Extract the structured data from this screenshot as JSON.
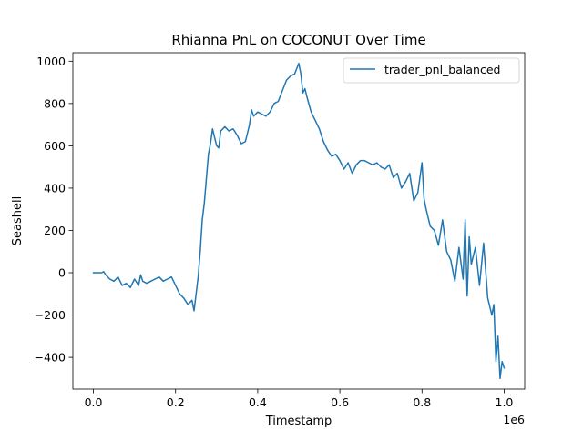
{
  "chart_data": {
    "type": "line",
    "title": "Rhianna PnL on COCONUT Over Time",
    "xlabel": "Timestamp",
    "ylabel": "Seashell",
    "x_offset_label": "1e6",
    "xlim": [
      -0.05,
      1.05
    ],
    "ylim": [
      -550,
      1040
    ],
    "x_ticks": [
      0.0,
      0.2,
      0.4,
      0.6,
      0.8,
      1.0
    ],
    "x_tick_labels": [
      "0.0",
      "0.2",
      "0.4",
      "0.6",
      "0.8",
      "1.0"
    ],
    "y_ticks": [
      -400,
      -200,
      0,
      200,
      400,
      600,
      800,
      1000
    ],
    "y_tick_labels": [
      "−400",
      "−200",
      "0",
      "200",
      "400",
      "600",
      "800",
      "1000"
    ],
    "legend": {
      "position": "upper right",
      "entries": [
        "trader_pnl_balanced"
      ]
    },
    "grid": false,
    "series": [
      {
        "name": "trader_pnl_balanced",
        "color": "#1f77b4",
        "x": [
          0.0,
          0.02,
          0.025,
          0.03,
          0.04,
          0.05,
          0.06,
          0.07,
          0.08,
          0.09,
          0.1,
          0.11,
          0.115,
          0.12,
          0.13,
          0.14,
          0.15,
          0.16,
          0.17,
          0.18,
          0.19,
          0.2,
          0.21,
          0.22,
          0.23,
          0.24,
          0.245,
          0.25,
          0.255,
          0.26,
          0.265,
          0.27,
          0.28,
          0.285,
          0.29,
          0.3,
          0.305,
          0.31,
          0.32,
          0.33,
          0.34,
          0.35,
          0.36,
          0.37,
          0.38,
          0.385,
          0.39,
          0.4,
          0.41,
          0.42,
          0.43,
          0.44,
          0.45,
          0.46,
          0.47,
          0.48,
          0.49,
          0.5,
          0.505,
          0.51,
          0.515,
          0.52,
          0.53,
          0.54,
          0.55,
          0.56,
          0.57,
          0.58,
          0.59,
          0.6,
          0.61,
          0.62,
          0.63,
          0.64,
          0.65,
          0.66,
          0.67,
          0.68,
          0.69,
          0.7,
          0.71,
          0.72,
          0.73,
          0.74,
          0.75,
          0.76,
          0.77,
          0.78,
          0.79,
          0.8,
          0.805,
          0.81,
          0.82,
          0.83,
          0.84,
          0.85,
          0.86,
          0.87,
          0.88,
          0.89,
          0.9,
          0.905,
          0.91,
          0.915,
          0.92,
          0.93,
          0.94,
          0.95,
          0.96,
          0.97,
          0.975,
          0.98,
          0.985,
          0.99,
          0.995,
          1.0
        ],
        "y": [
          0,
          0,
          5,
          -10,
          -30,
          -40,
          -20,
          -60,
          -50,
          -70,
          -30,
          -60,
          -10,
          -40,
          -50,
          -40,
          -30,
          -20,
          -40,
          -30,
          -20,
          -60,
          -100,
          -120,
          -150,
          -130,
          -180,
          -100,
          -20,
          100,
          250,
          330,
          560,
          610,
          680,
          600,
          590,
          670,
          690,
          670,
          680,
          650,
          610,
          620,
          700,
          770,
          740,
          760,
          750,
          740,
          760,
          800,
          810,
          860,
          910,
          930,
          940,
          990,
          940,
          850,
          870,
          830,
          760,
          720,
          680,
          620,
          580,
          550,
          560,
          530,
          490,
          520,
          470,
          510,
          530,
          530,
          520,
          510,
          520,
          500,
          490,
          510,
          450,
          470,
          400,
          430,
          470,
          340,
          380,
          520,
          350,
          300,
          220,
          200,
          130,
          250,
          100,
          60,
          -40,
          120,
          -30,
          250,
          -110,
          170,
          40,
          120,
          -60,
          140,
          -120,
          -200,
          -150,
          -420,
          -300,
          -500,
          -420,
          -450
        ]
      }
    ]
  }
}
